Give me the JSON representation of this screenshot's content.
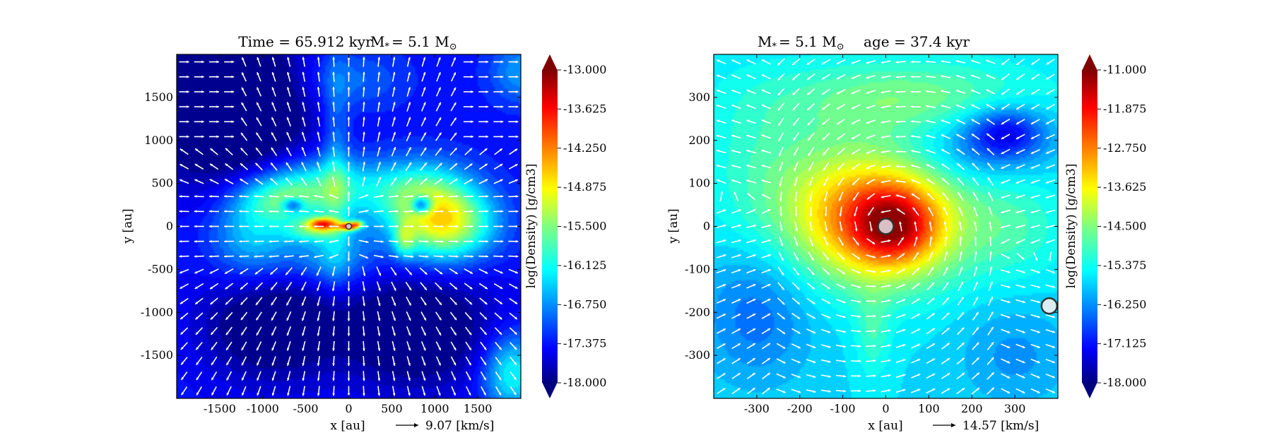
{
  "chart_data": [
    {
      "type": "heatmap",
      "title": "Time = 65.912 kyr    M$_*$ = 5.1 M$_\\odot$",
      "title_parts": {
        "time": "Time = 65.912 kyr",
        "mass": "M",
        "mass_sub": "*",
        "mass_val": "= 5.1 M",
        "mass_sun": "⊙"
      },
      "xlabel": "x [au]",
      "ylabel": "y [au]",
      "xlim": [
        -2000,
        2000
      ],
      "ylim": [
        -2000,
        2000
      ],
      "x_ticks": [
        -1500,
        -1000,
        -500,
        0,
        500,
        1000,
        1500
      ],
      "y_ticks": [
        -1500,
        -1000,
        -500,
        0,
        500,
        1000,
        1500
      ],
      "colorbar": {
        "label": "log(Density) [g/cm3]",
        "min": -18.0,
        "max": -13.0,
        "ticks": [
          "-13.000",
          "-13.625",
          "-14.250",
          "-14.875",
          "-15.500",
          "-16.125",
          "-16.750",
          "-17.375",
          "-18.000"
        ],
        "colormap": "jet"
      },
      "vector_key": "9.07 [km/s]",
      "sink_particles": [
        {
          "x": 0,
          "y": 0
        }
      ],
      "features": [
        {
          "x": -1400,
          "y": 1400,
          "sx": 900,
          "sy": 900,
          "v": -1.5
        },
        {
          "x": -900,
          "y": -1100,
          "sx": 800,
          "sy": 700,
          "v": -1.0
        },
        {
          "x": 800,
          "y": -1200,
          "sx": 900,
          "sy": 700,
          "v": -1.0
        },
        {
          "x": -350,
          "y": 450,
          "sx": 650,
          "sy": 350,
          "v": 1.4
        },
        {
          "x": 800,
          "y": 400,
          "sx": 600,
          "sy": 380,
          "v": 1.3
        },
        {
          "x": 1050,
          "y": 0,
          "sx": 550,
          "sy": 450,
          "v": 1.8
        },
        {
          "x": 1300,
          "y": 50,
          "sx": 500,
          "sy": 350,
          "v": 0.6
        },
        {
          "x": -200,
          "y": -350,
          "sx": 500,
          "sy": 400,
          "v": 0.9
        },
        {
          "x": -800,
          "y": 300,
          "sx": 450,
          "sy": 260,
          "v": 0.8
        },
        {
          "x": -1100,
          "y": -100,
          "sx": 500,
          "sy": 600,
          "v": 1.1
        },
        {
          "x": -400,
          "y": -50,
          "sx": 320,
          "sy": 120,
          "v": 1.0
        },
        {
          "x": -300,
          "y": 30,
          "sx": 180,
          "sy": 70,
          "v": 2.2
        },
        {
          "x": 0,
          "y": 0,
          "sx": 110,
          "sy": 45,
          "v": 2.6
        },
        {
          "x": 100,
          "y": 30,
          "sx": 70,
          "sy": 40,
          "v": 1.5
        },
        {
          "x": 650,
          "y": -150,
          "sx": 120,
          "sy": 200,
          "v": 1.0
        },
        {
          "x": 850,
          "y": 250,
          "sx": 120,
          "sy": 100,
          "v": -1.8
        },
        {
          "x": -650,
          "y": 250,
          "sx": 120,
          "sy": 80,
          "v": -1.2
        },
        {
          "x": -150,
          "y": 700,
          "sx": 160,
          "sy": 1200,
          "v": 0.6
        },
        {
          "x": 1900,
          "y": -1700,
          "sx": 350,
          "sy": 450,
          "v": 1.3
        },
        {
          "x": 2000,
          "y": 1800,
          "sx": 350,
          "sy": 350,
          "v": 0.7
        },
        {
          "x": 0,
          "y": 1700,
          "sx": 600,
          "sy": 350,
          "v": 0.5
        }
      ],
      "base_value": -17.3,
      "flow_pattern": "bipolar"
    },
    {
      "type": "heatmap",
      "title": "M$_*$ = 5.1 M$_\\odot$         age = 37.4 kyr",
      "title_parts": {
        "mass": "M",
        "mass_sub": "*",
        "mass_val": "= 5.1 M",
        "mass_sun": "⊙",
        "age": "age = 37.4 kyr"
      },
      "xlabel": "x [au]",
      "ylabel": "y [au]",
      "xlim": [
        -400,
        400
      ],
      "ylim": [
        -400,
        400
      ],
      "x_ticks": [
        -300,
        -200,
        -100,
        0,
        100,
        200,
        300
      ],
      "y_ticks": [
        -300,
        -200,
        -100,
        0,
        100,
        200,
        300
      ],
      "colorbar": {
        "label": "log(Density) [g/cm3]",
        "min": -18.0,
        "max": -11.0,
        "ticks": [
          "-11.000",
          "-11.875",
          "-12.750",
          "-13.625",
          "-14.500",
          "-15.375",
          "-16.250",
          "-17.125",
          "-18.000"
        ],
        "colormap": "jet"
      },
      "vector_key": "14.57 [km/s]",
      "sink_particles": [
        {
          "x": 0,
          "y": 0,
          "size": "large"
        },
        {
          "x": 380,
          "y": -185,
          "size": "large"
        }
      ],
      "features": [
        {
          "x": 0,
          "y": 10,
          "sx": 180,
          "sy": 140,
          "v": 2.7
        },
        {
          "x": 20,
          "y": 0,
          "sx": 90,
          "sy": 80,
          "v": 1.6
        },
        {
          "x": -120,
          "y": 60,
          "sx": 220,
          "sy": 170,
          "v": 1.0
        },
        {
          "x": 200,
          "y": 180,
          "sx": 160,
          "sy": 80,
          "v": -0.7
        },
        {
          "x": 50,
          "y": 300,
          "sx": 300,
          "sy": 90,
          "v": 1.0
        },
        {
          "x": 280,
          "y": 220,
          "sx": 90,
          "sy": 60,
          "v": -1.5
        },
        {
          "x": -300,
          "y": -200,
          "sx": 130,
          "sy": 160,
          "v": -0.8
        },
        {
          "x": 300,
          "y": -300,
          "sx": 130,
          "sy": 120,
          "v": -0.5
        },
        {
          "x": -30,
          "y": -250,
          "sx": 40,
          "sy": 100,
          "v": 0.6
        },
        {
          "x": -300,
          "y": 200,
          "sx": 130,
          "sy": 170,
          "v": 0.3
        },
        {
          "x": 300,
          "y": 0,
          "sx": 120,
          "sy": 120,
          "v": 0.6
        }
      ],
      "base_value": -15.6,
      "flow_pattern": "rotation"
    }
  ]
}
